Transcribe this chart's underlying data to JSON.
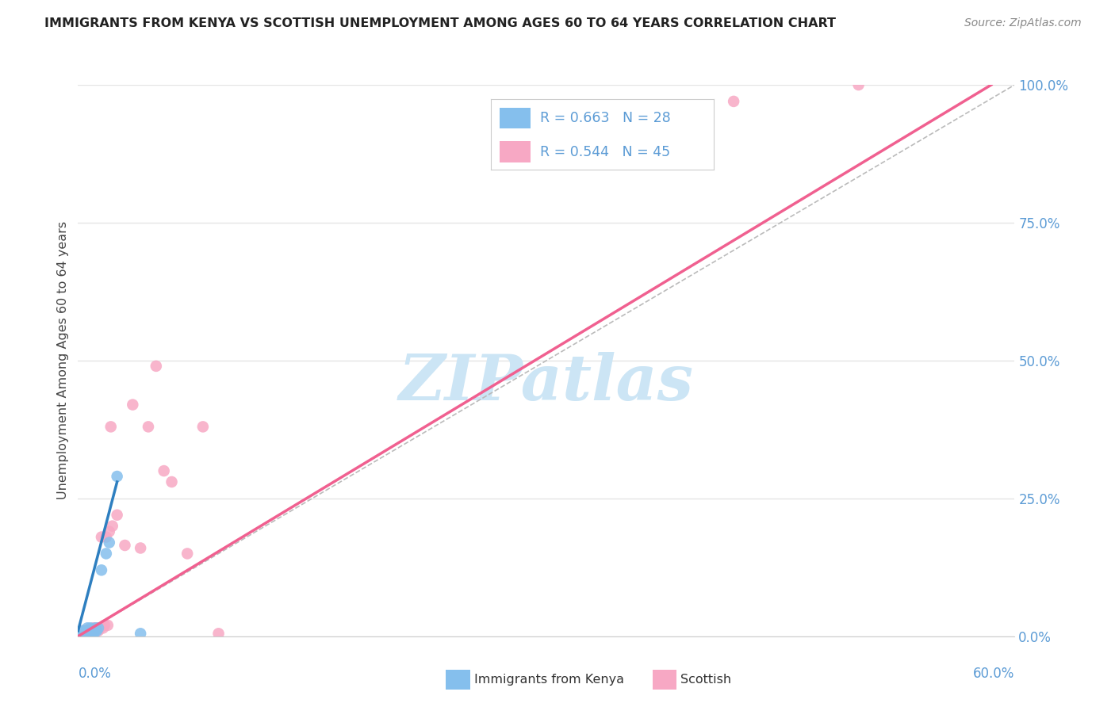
{
  "title": "IMMIGRANTS FROM KENYA VS SCOTTISH UNEMPLOYMENT AMONG AGES 60 TO 64 YEARS CORRELATION CHART",
  "source": "Source: ZipAtlas.com",
  "ylabel": "Unemployment Among Ages 60 to 64 years",
  "ylabel_ticks_labels": [
    "0.0%",
    "25.0%",
    "50.0%",
    "75.0%",
    "100.0%"
  ],
  "ylabel_tick_vals": [
    0.0,
    0.25,
    0.5,
    0.75,
    1.0
  ],
  "xtick_left_label": "0.0%",
  "xtick_right_label": "60.0%",
  "xlim": [
    0.0,
    0.6
  ],
  "ylim": [
    0.0,
    1.0
  ],
  "background_color": "#ffffff",
  "watermark_text": "ZIPatlas",
  "watermark_color": "#cce5f5",
  "kenya_color": "#85bfed",
  "scottish_color": "#f7a8c4",
  "kenya_line_color": "#2e7fc0",
  "scottish_line_color": "#f06090",
  "diagonal_color": "#bbbbbb",
  "grid_color": "#e5e5e5",
  "axis_color": "#5b9bd5",
  "title_color": "#222222",
  "source_color": "#888888",
  "ylabel_color": "#444444",
  "legend_R_color": "#5b9bd5",
  "legend_N_color": "#222222",
  "kenya_scatter_x": [
    0.001,
    0.002,
    0.002,
    0.003,
    0.003,
    0.004,
    0.004,
    0.005,
    0.005,
    0.005,
    0.006,
    0.006,
    0.007,
    0.007,
    0.008,
    0.008,
    0.009,
    0.009,
    0.01,
    0.01,
    0.011,
    0.012,
    0.013,
    0.015,
    0.018,
    0.02,
    0.025,
    0.04
  ],
  "kenya_scatter_y": [
    0.005,
    0.005,
    0.008,
    0.005,
    0.01,
    0.005,
    0.008,
    0.005,
    0.008,
    0.01,
    0.005,
    0.015,
    0.005,
    0.01,
    0.005,
    0.015,
    0.008,
    0.012,
    0.005,
    0.01,
    0.015,
    0.01,
    0.015,
    0.12,
    0.15,
    0.17,
    0.29,
    0.005
  ],
  "scottish_scatter_x": [
    0.001,
    0.002,
    0.002,
    0.003,
    0.003,
    0.004,
    0.004,
    0.005,
    0.005,
    0.006,
    0.006,
    0.007,
    0.007,
    0.008,
    0.008,
    0.009,
    0.009,
    0.01,
    0.01,
    0.011,
    0.012,
    0.013,
    0.014,
    0.015,
    0.016,
    0.017,
    0.018,
    0.019,
    0.02,
    0.021,
    0.022,
    0.025,
    0.03,
    0.035,
    0.04,
    0.045,
    0.05,
    0.055,
    0.06,
    0.07,
    0.08,
    0.09,
    0.35,
    0.42,
    0.5
  ],
  "scottish_scatter_y": [
    0.005,
    0.005,
    0.008,
    0.005,
    0.01,
    0.005,
    0.008,
    0.005,
    0.01,
    0.005,
    0.01,
    0.005,
    0.01,
    0.005,
    0.01,
    0.005,
    0.01,
    0.008,
    0.015,
    0.01,
    0.015,
    0.01,
    0.015,
    0.18,
    0.015,
    0.02,
    0.18,
    0.02,
    0.19,
    0.38,
    0.2,
    0.22,
    0.165,
    0.42,
    0.16,
    0.38,
    0.49,
    0.3,
    0.28,
    0.15,
    0.38,
    0.005,
    0.96,
    0.97,
    1.0
  ],
  "kenya_line_x": [
    0.0,
    0.025
  ],
  "kenya_line_y": [
    0.01,
    0.28
  ],
  "scottish_line_x": [
    0.0,
    0.585
  ],
  "scottish_line_y": [
    0.0,
    1.0
  ]
}
